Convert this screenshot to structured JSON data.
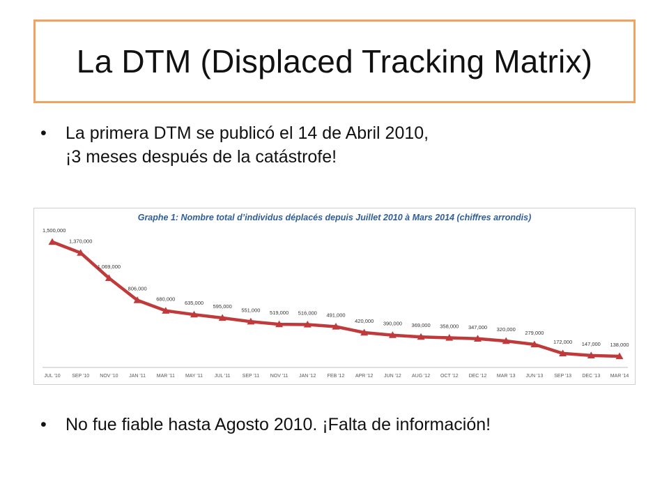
{
  "title": "La DTM (Displaced Tracking Matrix)",
  "bullets": [
    {
      "line1": "La primera DTM se publicó el 14 de Abril 2010,",
      "line2": "¡3 meses después de la catástrofe!"
    },
    {
      "line1": "No fue fiable hasta Agosto 2010. ¡Falta de información!"
    }
  ],
  "colors": {
    "title_border": "#f0a35e",
    "series_line": "#c0393b",
    "chart_title": "#2e5d9a"
  },
  "chart_data": {
    "type": "line",
    "title": "Graphe 1: Nombre total d’individus déplacés depuis Juillet 2010 à Mars 2014 (chiffres arrondis)",
    "categories": [
      "JUL '10",
      "SEP '10",
      "NOV '10",
      "JAN '11",
      "MAR '11",
      "MAY '11",
      "JUL '11",
      "SEP '11",
      "NOV '11",
      "JAN '12",
      "FEB '12",
      "APR '12",
      "JUN '12",
      "AUG '12",
      "OCT '12",
      "DEC '12",
      "MAR '13",
      "JUN '13",
      "SEP '13",
      "DEC '13",
      "MAR '14"
    ],
    "values": [
      1500000,
      1370000,
      1069000,
      806000,
      680000,
      635000,
      595000,
      551000,
      519000,
      516000,
      491000,
      420000,
      390000,
      369000,
      358000,
      347000,
      320000,
      279000,
      172000,
      147000,
      138000
    ],
    "value_labels": [
      "1,500,000",
      "1,370,000",
      "1,069,000",
      "806,000",
      "680,000",
      "635,000",
      "595,000",
      "551,000",
      "519,000",
      "516,000",
      "491,000",
      "420,000",
      "390,000",
      "369,000",
      "358,000",
      "347,000",
      "320,000",
      "279,000",
      "172,000",
      "147,000",
      "138,000"
    ],
    "marker": "triangle",
    "grid": false,
    "legend": "none"
  }
}
